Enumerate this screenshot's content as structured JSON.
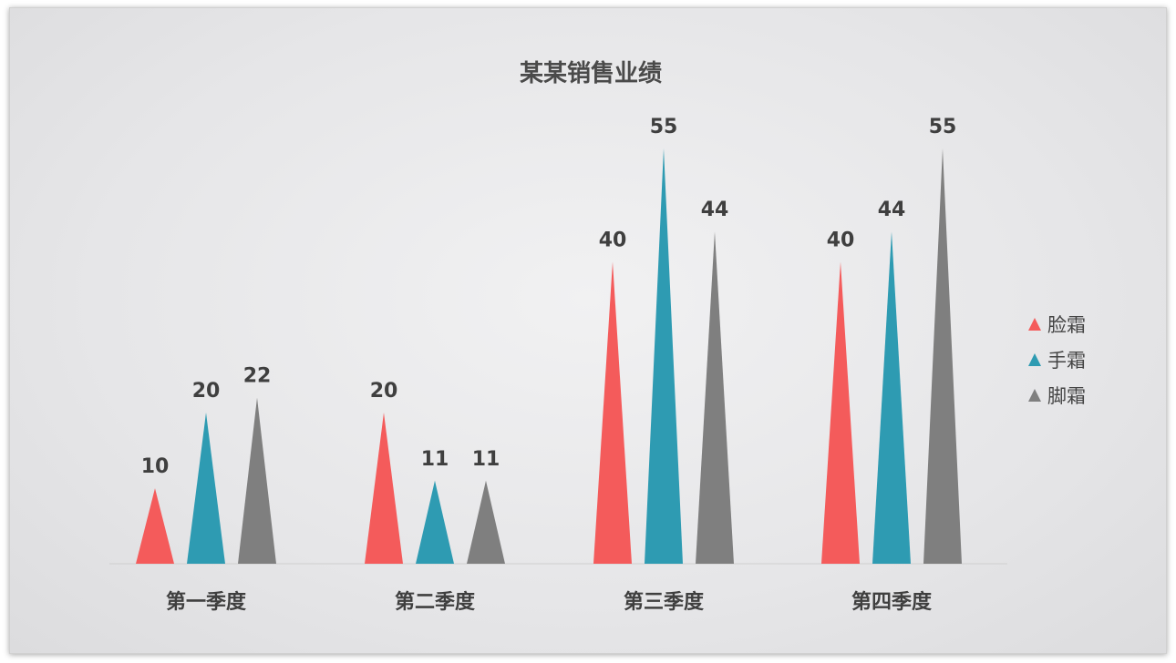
{
  "chart_data": {
    "type": "bar",
    "title": "某某销售业绩",
    "categories": [
      "第一季度",
      "第二季度",
      "第三季度",
      "第四季度"
    ],
    "series": [
      {
        "name": "脸霜",
        "values": [
          10,
          20,
          40,
          40
        ],
        "color": "#f45b5b"
      },
      {
        "name": "手霜",
        "values": [
          20,
          11,
          55,
          44
        ],
        "color": "#2e9bb2"
      },
      {
        "name": "脚霜",
        "values": [
          22,
          11,
          44,
          55
        ],
        "color": "#7f7f7f"
      }
    ],
    "ylim": [
      0,
      55
    ],
    "mark_shape": "triangle",
    "legend_position": "right",
    "grid": false
  }
}
